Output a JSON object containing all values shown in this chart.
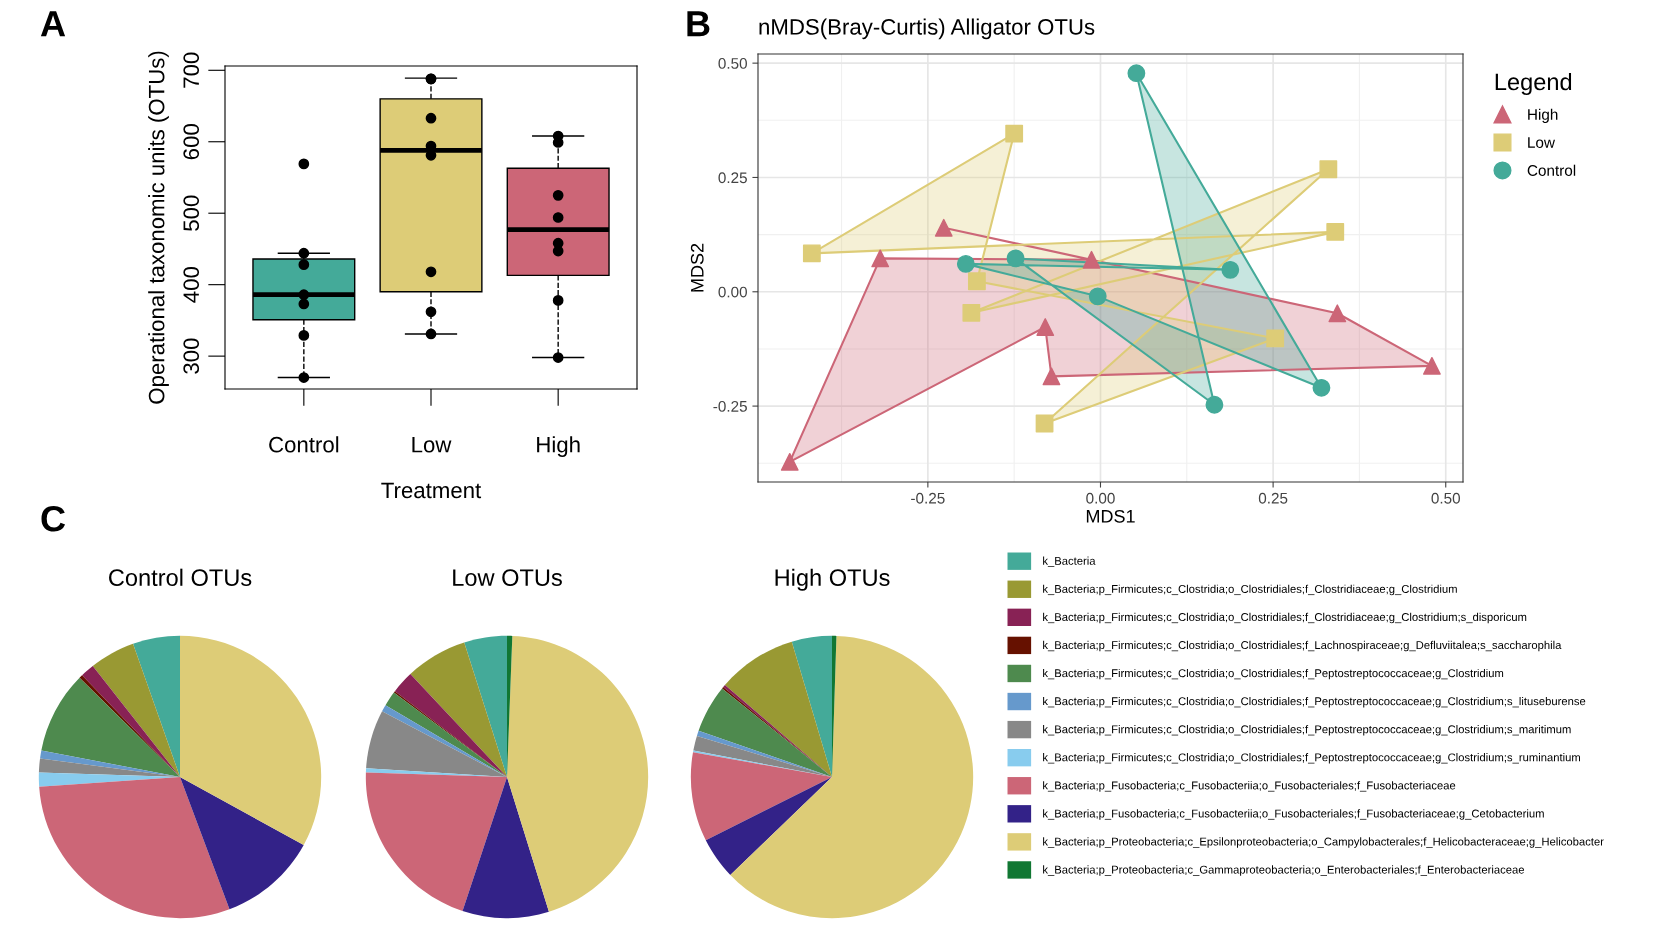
{
  "chart_data": [
    {
      "type": "box",
      "annotations": [
        "A"
      ],
      "xlabel": "Treatment",
      "ylabel": "Operational taxonomic units (OTUs)",
      "categories": [
        "Control",
        "Low",
        "High"
      ],
      "colors": [
        "#44aa99",
        "#ddcc77",
        "#cc6677"
      ],
      "ylim": [
        254,
        706
      ],
      "yticks": [
        300,
        400,
        500,
        600,
        700
      ],
      "grid": false,
      "boxes": [
        {
          "low": 270,
          "q1": 351,
          "median": 386,
          "q3": 436,
          "high": 444
        },
        {
          "low": 331,
          "q1": 390,
          "median": 588,
          "q3": 660,
          "high": 689
        },
        {
          "low": 298,
          "q1": 413,
          "median": 477,
          "q3": 563,
          "high": 608
        }
      ],
      "series": [
        {
          "type": "scatter",
          "color": "#000000",
          "x": [
            "Control",
            "Control",
            "Control",
            "Control",
            "Control",
            "Control",
            "Control",
            "Low",
            "Low",
            "Low",
            "Low",
            "Low",
            "Low",
            "Low",
            "Low",
            "High",
            "High",
            "High",
            "High",
            "High",
            "High",
            "High",
            "High"
          ],
          "values": [
            569,
            444,
            428,
            386,
            373,
            329,
            270,
            688,
            688,
            633,
            594,
            581,
            418,
            362,
            331,
            608,
            599,
            525,
            494,
            458,
            447,
            378,
            298
          ]
        }
      ]
    },
    {
      "type": "scatter",
      "annotations": [
        "B"
      ],
      "title": "nMDS(Bray-Curtis) Alligator OTUs",
      "xlabel": "MDS1",
      "ylabel": "MDS2",
      "xlim": [
        -0.496,
        0.525
      ],
      "ylim": [
        -0.416,
        0.52
      ],
      "xticks": [
        {
          "value": -0.25,
          "label": "-0.25"
        },
        {
          "value": 0,
          "label": "0.00"
        },
        {
          "value": 0.25,
          "label": "0.25"
        },
        {
          "value": 0.5,
          "label": "0.50"
        }
      ],
      "yticks": [
        {
          "value": -0.25,
          "label": "-0.25"
        },
        {
          "value": 0,
          "label": "0.00"
        },
        {
          "value": 0.25,
          "label": "0.25"
        },
        {
          "value": 0.5,
          "label": "0.50"
        }
      ],
      "grid": true,
      "legend": "right",
      "legend_title": "Legend",
      "series": [
        {
          "name": "High",
          "color": "#cc6677",
          "marker": "triangle",
          "line_style": "solid",
          "x": [
            -0.45,
            -0.319,
            -0.013,
            -0.227,
            0.343,
            0.48,
            -0.071,
            -0.08
          ],
          "values": [
            -0.372,
            0.073,
            0.07,
            0.14,
            -0.047,
            -0.162,
            -0.185,
            -0.077
          ]
        },
        {
          "name": "Low",
          "color": "#ddcc77",
          "marker": "square",
          "line_style": "solid",
          "x": [
            -0.125,
            -0.179,
            0.253,
            -0.081,
            0.33,
            -0.187,
            0.34,
            -0.418
          ],
          "values": [
            0.346,
            0.023,
            -0.102,
            -0.288,
            0.268,
            -0.046,
            0.131,
            0.084
          ]
        },
        {
          "name": "Control",
          "color": "#44aa99",
          "marker": "circle",
          "line_style": "solid",
          "x": [
            0.052,
            0.32,
            -0.004,
            -0.195,
            0.188,
            -0.123,
            0.165
          ],
          "values": [
            0.478,
            -0.21,
            -0.01,
            0.061,
            0.048,
            0.073,
            -0.247
          ]
        }
      ]
    },
    {
      "type": "pie",
      "annotations": [
        "C"
      ],
      "title": "Control OTUs",
      "legend": "right",
      "categories": [
        "k_Bacteria",
        "k_Bacteria;p_Firmicutes;c_Clostridia;o_Clostridiales;f_Clostridiaceae;g_Clostridium",
        "k_Bacteria;p_Firmicutes;c_Clostridia;o_Clostridiales;f_Clostridiaceae;g_Clostridium;s_disporicum",
        "k_Bacteria;p_Firmicutes;c_Clostridia;o_Clostridiales;f_Lachnospiraceae;g_Defluviitalea;s_saccharophila",
        "k_Bacteria;p_Firmicutes;c_Clostridia;o_Clostridiales;f_Peptostreptococcaceae;g_Clostridium",
        "k_Bacteria;p_Firmicutes;c_Clostridia;o_Clostridiales;f_Peptostreptococcaceae;g_Clostridium;s_lituseburense",
        "k_Bacteria;p_Firmicutes;c_Clostridia;o_Clostridiales;f_Peptostreptococcaceae;g_Clostridium;s_maritimum",
        "k_Bacteria;p_Firmicutes;c_Clostridia;o_Clostridiales;f_Peptostreptococcaceae;g_Clostridium;s_ruminantium",
        "k_Bacteria;p_Fusobacteria;c_Fusobacteriia;o_Fusobacteriales;f_Fusobacteriaceae",
        "k_Bacteria;p_Fusobacteria;c_Fusobacteriia;o_Fusobacteriales;f_Fusobacteriaceae;g_Cetobacterium",
        "k_Bacteria;p_Proteobacteria;c_Epsilonproteobacteria;o_Campylobacterales;f_Helicobacteraceae;g_Helicobacter",
        "k_Bacteria;p_Proteobacteria;c_Gammaproteobacteria;o_Enterobacteriales;f_Enterobacteriaceae"
      ],
      "colors": [
        "#44aa99",
        "#999933",
        "#882255",
        "#661100",
        "#4e8a4e",
        "#6699cc",
        "#888888",
        "#88ccee",
        "#cc6677",
        "#332288",
        "#ddcc77",
        "#117733"
      ],
      "values": [
        5.4,
        5.2,
        1.6,
        0.4,
        9.4,
        0.9,
        1.6,
        1.6,
        29.6,
        11.3,
        33.0,
        0
      ]
    },
    {
      "type": "pie",
      "title": "Low OTUs",
      "colors": [
        "#44aa99",
        "#999933",
        "#882255",
        "#661100",
        "#4e8a4e",
        "#6699cc",
        "#888888",
        "#88ccee",
        "#cc6677",
        "#332288",
        "#ddcc77",
        "#117733"
      ],
      "values": [
        4.9,
        7.1,
        2.6,
        0.2,
        1.7,
        0.8,
        6.7,
        0.5,
        20.4,
        9.9,
        44.6,
        0.6
      ]
    },
    {
      "type": "pie",
      "title": "High OTUs",
      "colors": [
        "#44aa99",
        "#999933",
        "#882255",
        "#661100",
        "#4e8a4e",
        "#6699cc",
        "#888888",
        "#88ccee",
        "#cc6677",
        "#332288",
        "#ddcc77",
        "#117733"
      ],
      "values": [
        4.6,
        9.1,
        0.3,
        0.2,
        5.5,
        0.6,
        1.7,
        0.2,
        10.2,
        4.8,
        62.3,
        0.5
      ]
    }
  ]
}
